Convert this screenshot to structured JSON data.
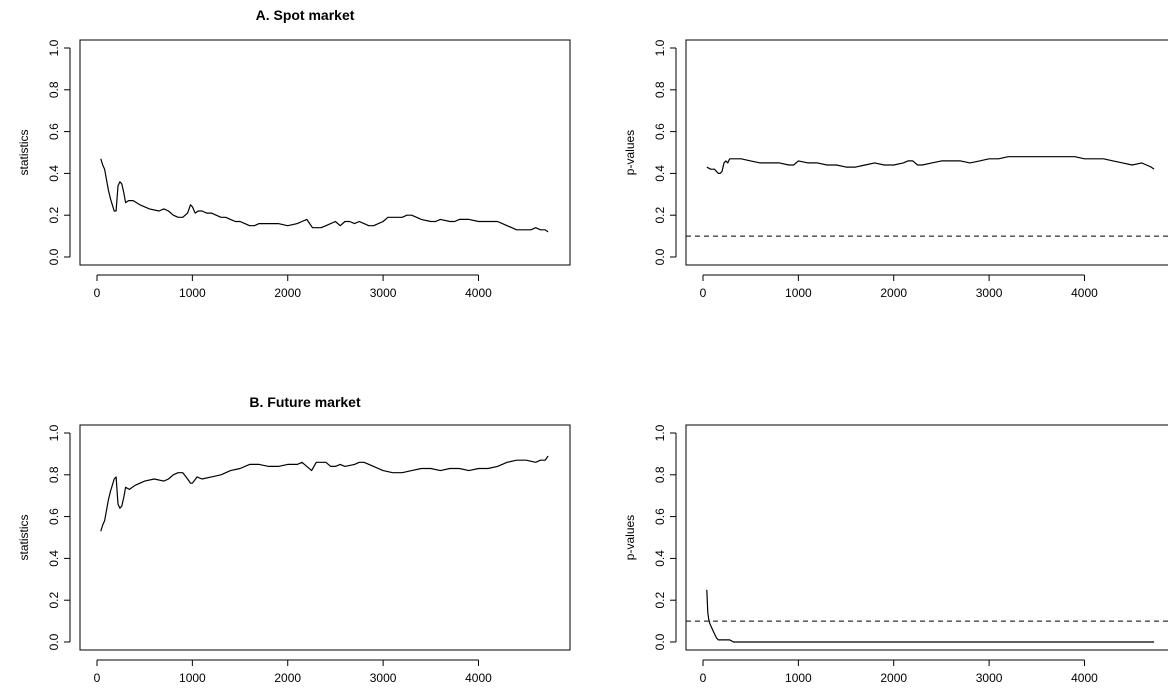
{
  "chart_data": [
    {
      "type": "line",
      "title": "A. Spot market",
      "xlabel": "",
      "ylabel": "statistics",
      "xlim": [
        0,
        4750
      ],
      "ylim": [
        0,
        1
      ],
      "x_ticks": [
        "0",
        "1000",
        "2000",
        "3000",
        "4000"
      ],
      "y_ticks": [
        "0.0",
        "0.2",
        "0.4",
        "0.6",
        "0.8",
        "1.0"
      ],
      "grid": false,
      "reference_line": null,
      "series": [
        {
          "x": [
            40,
            60,
            80,
            100,
            120,
            140,
            160,
            180,
            200,
            220,
            240,
            260,
            280,
            300,
            330,
            380,
            450,
            550,
            650,
            700,
            750,
            800,
            850,
            900,
            950,
            980,
            1000,
            1030,
            1060,
            1100,
            1150,
            1200,
            1250,
            1300,
            1350,
            1400,
            1450,
            1500,
            1550,
            1600,
            1650,
            1700,
            1800,
            1900,
            2000,
            2100,
            2150,
            2200,
            2230,
            2260,
            2300,
            2350,
            2400,
            2500,
            2550,
            2600,
            2650,
            2700,
            2750,
            2800,
            2850,
            2900,
            3000,
            3050,
            3100,
            3150,
            3200,
            3250,
            3300,
            3350,
            3400,
            3500,
            3550,
            3600,
            3700,
            3750,
            3800,
            3900,
            4000,
            4100,
            4150,
            4200,
            4250,
            4300,
            4350,
            4400,
            4450,
            4500,
            4550,
            4600,
            4650,
            4700,
            4730
          ],
          "y": [
            0.47,
            0.44,
            0.42,
            0.37,
            0.32,
            0.28,
            0.25,
            0.22,
            0.22,
            0.34,
            0.36,
            0.35,
            0.31,
            0.26,
            0.27,
            0.27,
            0.25,
            0.23,
            0.22,
            0.23,
            0.22,
            0.2,
            0.19,
            0.19,
            0.21,
            0.25,
            0.24,
            0.21,
            0.22,
            0.22,
            0.21,
            0.21,
            0.2,
            0.19,
            0.19,
            0.18,
            0.17,
            0.17,
            0.16,
            0.15,
            0.15,
            0.16,
            0.16,
            0.16,
            0.15,
            0.16,
            0.17,
            0.18,
            0.16,
            0.14,
            0.14,
            0.14,
            0.15,
            0.17,
            0.15,
            0.17,
            0.17,
            0.16,
            0.17,
            0.16,
            0.15,
            0.15,
            0.17,
            0.19,
            0.19,
            0.19,
            0.19,
            0.2,
            0.2,
            0.19,
            0.18,
            0.17,
            0.17,
            0.18,
            0.17,
            0.17,
            0.18,
            0.18,
            0.17,
            0.17,
            0.17,
            0.17,
            0.16,
            0.15,
            0.14,
            0.13,
            0.13,
            0.13,
            0.13,
            0.14,
            0.13,
            0.13,
            0.12
          ]
        }
      ]
    },
    {
      "type": "line",
      "title": "",
      "xlabel": "",
      "ylabel": "p-values",
      "xlim": [
        0,
        4750
      ],
      "ylim": [
        0,
        1
      ],
      "x_ticks": [
        "0",
        "1000",
        "2000",
        "3000",
        "4000"
      ],
      "y_ticks": [
        "0.0",
        "0.2",
        "0.4",
        "0.6",
        "0.8",
        "1.0"
      ],
      "grid": false,
      "reference_line": 0.1,
      "series": [
        {
          "x": [
            40,
            80,
            120,
            160,
            180,
            200,
            220,
            240,
            260,
            280,
            300,
            400,
            500,
            600,
            700,
            800,
            900,
            950,
            1000,
            1100,
            1200,
            1300,
            1400,
            1500,
            1600,
            1700,
            1800,
            1900,
            2000,
            2100,
            2150,
            2200,
            2250,
            2300,
            2400,
            2500,
            2600,
            2700,
            2800,
            2900,
            3000,
            3100,
            3200,
            3300,
            3400,
            3500,
            3600,
            3700,
            3800,
            3900,
            4000,
            4100,
            4200,
            4300,
            4400,
            4500,
            4600,
            4650,
            4700,
            4730
          ],
          "y": [
            0.43,
            0.42,
            0.42,
            0.4,
            0.4,
            0.41,
            0.45,
            0.46,
            0.45,
            0.47,
            0.47,
            0.47,
            0.46,
            0.45,
            0.45,
            0.45,
            0.44,
            0.44,
            0.46,
            0.45,
            0.45,
            0.44,
            0.44,
            0.43,
            0.43,
            0.44,
            0.45,
            0.44,
            0.44,
            0.45,
            0.46,
            0.46,
            0.44,
            0.44,
            0.45,
            0.46,
            0.46,
            0.46,
            0.45,
            0.46,
            0.47,
            0.47,
            0.48,
            0.48,
            0.48,
            0.48,
            0.48,
            0.48,
            0.48,
            0.48,
            0.47,
            0.47,
            0.47,
            0.46,
            0.45,
            0.44,
            0.45,
            0.44,
            0.43,
            0.42
          ]
        }
      ]
    },
    {
      "type": "line",
      "title": "B. Future market",
      "xlabel": "",
      "ylabel": "statistics",
      "xlim": [
        0,
        4750
      ],
      "ylim": [
        0,
        1
      ],
      "x_ticks": [
        "0",
        "1000",
        "2000",
        "3000",
        "4000"
      ],
      "y_ticks": [
        "0.0",
        "0.2",
        "0.4",
        "0.6",
        "0.8",
        "1.0"
      ],
      "grid": false,
      "reference_line": null,
      "series": [
        {
          "x": [
            40,
            60,
            80,
            100,
            120,
            140,
            160,
            180,
            200,
            220,
            240,
            260,
            280,
            300,
            340,
            400,
            500,
            600,
            700,
            750,
            800,
            850,
            900,
            950,
            980,
            1000,
            1050,
            1100,
            1200,
            1300,
            1400,
            1500,
            1600,
            1700,
            1800,
            1900,
            2000,
            2100,
            2150,
            2200,
            2250,
            2300,
            2400,
            2450,
            2500,
            2550,
            2600,
            2700,
            2750,
            2800,
            2900,
            3000,
            3100,
            3200,
            3300,
            3400,
            3500,
            3600,
            3700,
            3800,
            3900,
            4000,
            4100,
            4200,
            4300,
            4400,
            4500,
            4600,
            4650,
            4700,
            4730
          ],
          "y": [
            0.53,
            0.56,
            0.58,
            0.63,
            0.68,
            0.72,
            0.75,
            0.78,
            0.79,
            0.66,
            0.64,
            0.65,
            0.69,
            0.74,
            0.73,
            0.75,
            0.77,
            0.78,
            0.77,
            0.78,
            0.8,
            0.81,
            0.81,
            0.78,
            0.76,
            0.76,
            0.79,
            0.78,
            0.79,
            0.8,
            0.82,
            0.83,
            0.85,
            0.85,
            0.84,
            0.84,
            0.85,
            0.85,
            0.86,
            0.84,
            0.82,
            0.86,
            0.86,
            0.84,
            0.84,
            0.85,
            0.84,
            0.85,
            0.86,
            0.86,
            0.84,
            0.82,
            0.81,
            0.81,
            0.82,
            0.83,
            0.83,
            0.82,
            0.83,
            0.83,
            0.82,
            0.83,
            0.83,
            0.84,
            0.86,
            0.87,
            0.87,
            0.86,
            0.87,
            0.87,
            0.89
          ]
        }
      ]
    },
    {
      "type": "line",
      "title": "",
      "xlabel": "",
      "ylabel": "p-values",
      "xlim": [
        0,
        4750
      ],
      "ylim": [
        0,
        1
      ],
      "x_ticks": [
        "0",
        "1000",
        "2000",
        "3000",
        "4000"
      ],
      "y_ticks": [
        "0.0",
        "0.2",
        "0.4",
        "0.6",
        "0.8",
        "1.0"
      ],
      "grid": false,
      "reference_line": 0.1,
      "series": [
        {
          "x": [
            40,
            50,
            60,
            70,
            80,
            100,
            120,
            140,
            160,
            180,
            200,
            220,
            250,
            280,
            320,
            400,
            600,
            1000,
            2000,
            3000,
            4000,
            4730
          ],
          "y": [
            0.25,
            0.14,
            0.11,
            0.09,
            0.08,
            0.06,
            0.04,
            0.02,
            0.01,
            0.01,
            0.01,
            0.01,
            0.01,
            0.01,
            0.0,
            0.0,
            0.0,
            0.0,
            0.0,
            0.0,
            0.0,
            0.0
          ]
        }
      ]
    }
  ]
}
